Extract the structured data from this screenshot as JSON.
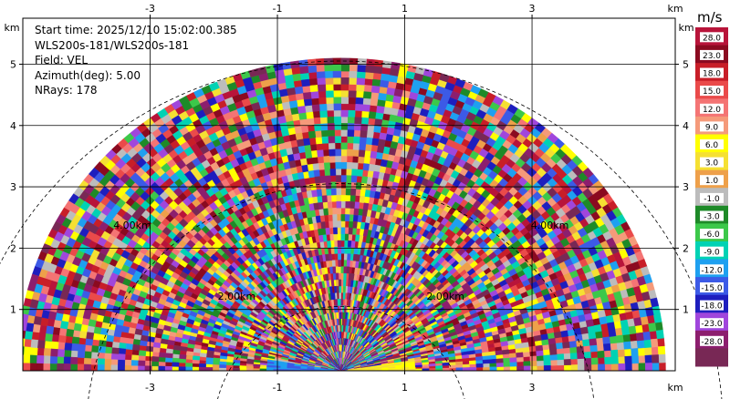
{
  "info": {
    "start_time": "Start time: 2025/12/10 15:02:00.385",
    "station": "WLS200s-181/WLS200s-181",
    "field": "Field: VEL",
    "azimuth": "Azimuth(deg): 5.00",
    "nrays": "NRays: 178"
  },
  "chart_data": {
    "type": "heatmap",
    "projection": "polar-rhi-half-disc",
    "x_unit_label": "km",
    "y_unit_label": "km",
    "xlim": [
      -5,
      5.25
    ],
    "ylim": [
      0,
      5.75
    ],
    "x_ticks": [
      -3,
      -1,
      1,
      3
    ],
    "y_ticks": [
      1,
      2,
      3,
      4,
      5
    ],
    "max_range_km": 5.1,
    "range_rings_km": [
      2,
      4,
      6
    ],
    "range_ring_labels": [
      {
        "text": "2.00km"
      },
      {
        "text": "4.00km"
      }
    ],
    "grid": true,
    "colorbar": {
      "title": "m/s",
      "levels": [
        "28.0",
        "23.0",
        "18.0",
        "15.0",
        "12.0",
        "9.0",
        "6.0",
        "3.0",
        "1.0",
        "-1.0",
        "-3.0",
        "-6.0",
        "-9.0",
        "-12.0",
        "-15.0",
        "-18.0",
        "-23.0",
        "-28.0"
      ],
      "colors": [
        "#b8143a",
        "#8b0a20",
        "#c81e28",
        "#ea4a4a",
        "#f47474",
        "#f59a7a",
        "#ffff00",
        "#f5e032",
        "#eea04a",
        "#bcbcbc",
        "#1e8a28",
        "#3cc84a",
        "#00d2b4",
        "#1ea0f0",
        "#3c5ae6",
        "#1e1ebe",
        "#a046dc",
        "#8c1e6e",
        "#782855"
      ]
    }
  }
}
